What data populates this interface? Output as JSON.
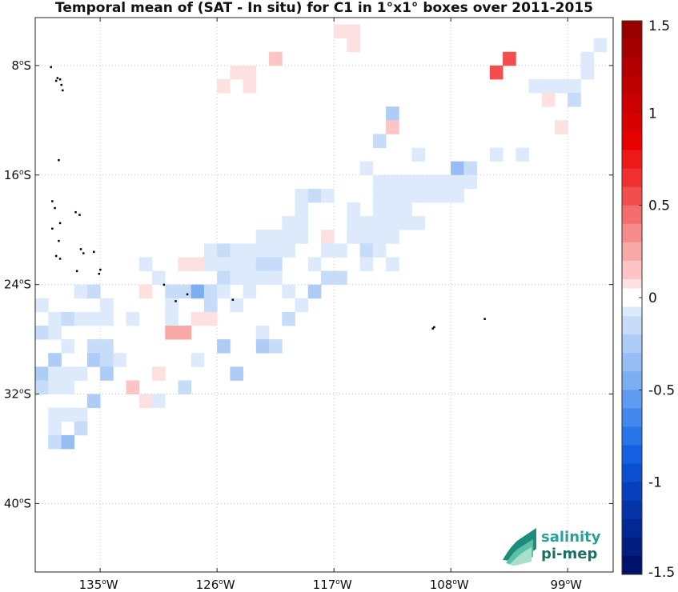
{
  "title": "Temporal mean of (SAT - In situ) for C1 in 1°x1° boxes over 2011-2015",
  "logo": {
    "line1": "salinity",
    "line2": "pi-mep",
    "color": "#2aa198"
  },
  "chart_data": {
    "type": "heatmap",
    "x_axis": {
      "range_lon": [
        -140,
        -95.5
      ],
      "ticks": [
        {
          "value": -135,
          "label": "135",
          "suffix": "W"
        },
        {
          "value": -126,
          "label": "126",
          "suffix": "W"
        },
        {
          "value": -117,
          "label": "117",
          "suffix": "W"
        },
        {
          "value": -108,
          "label": "108",
          "suffix": "W"
        },
        {
          "value": -99,
          "label": "99",
          "suffix": "W"
        }
      ]
    },
    "y_axis": {
      "range_lat": [
        -45,
        -4.5
      ],
      "ticks": [
        {
          "value": -8,
          "label": "8",
          "suffix": "S"
        },
        {
          "value": -16,
          "label": "16",
          "suffix": "S"
        },
        {
          "value": -24,
          "label": "24",
          "suffix": "S"
        },
        {
          "value": -32,
          "label": "32",
          "suffix": "S"
        },
        {
          "value": -40,
          "label": "40",
          "suffix": "S"
        }
      ]
    },
    "grid": true,
    "colorbar": {
      "min": -1.5,
      "max": 1.5,
      "step": 0.1,
      "tick_values": [
        1.5,
        1,
        0.5,
        0,
        -0.5,
        -1,
        -1.5
      ],
      "tick_labels": [
        "1.5",
        "1",
        "0.5",
        "0",
        "-0.5",
        "-1",
        "-1.5"
      ]
    },
    "cells": [
      {
        "lon": -116.5,
        "lat": -5.5,
        "v": 0.1
      },
      {
        "lon": -115.5,
        "lat": -5.5,
        "v": 0.1
      },
      {
        "lon": -115.5,
        "lat": -6.5,
        "v": 0.1
      },
      {
        "lon": -96.5,
        "lat": -6.5,
        "v": -0.1
      },
      {
        "lon": -121.5,
        "lat": -7.5,
        "v": 0.2
      },
      {
        "lon": -103.5,
        "lat": -7.5,
        "v": 0.6
      },
      {
        "lon": -97.5,
        "lat": -7.5,
        "v": -0.1
      },
      {
        "lon": -124.5,
        "lat": -8.5,
        "v": 0.1
      },
      {
        "lon": -123.5,
        "lat": -8.5,
        "v": 0.1
      },
      {
        "lon": -104.5,
        "lat": -8.5,
        "v": 0.6
      },
      {
        "lon": -97.5,
        "lat": -8.5,
        "v": -0.1
      },
      {
        "lon": -125.5,
        "lat": -9.5,
        "v": 0.1
      },
      {
        "lon": -123.5,
        "lat": -9.5,
        "v": 0.1
      },
      {
        "lon": -101.5,
        "lat": -9.5,
        "v": -0.1
      },
      {
        "lon": -100.5,
        "lat": -9.5,
        "v": -0.1
      },
      {
        "lon": -99.5,
        "lat": -9.5,
        "v": -0.1
      },
      {
        "lon": -98.5,
        "lat": -9.5,
        "v": -0.1
      },
      {
        "lon": -100.5,
        "lat": -10.5,
        "v": 0.1
      },
      {
        "lon": -98.5,
        "lat": -10.5,
        "v": -0.2
      },
      {
        "lon": -112.5,
        "lat": -11.5,
        "v": -0.3
      },
      {
        "lon": -112.5,
        "lat": -12.5,
        "v": 0.2
      },
      {
        "lon": -99.5,
        "lat": -12.5,
        "v": 0.1
      },
      {
        "lon": -113.5,
        "lat": -13.5,
        "v": -0.2
      },
      {
        "lon": -110.5,
        "lat": -14.5,
        "v": -0.1
      },
      {
        "lon": -104.5,
        "lat": -14.5,
        "v": -0.1
      },
      {
        "lon": -102.5,
        "lat": -14.5,
        "v": -0.1
      },
      {
        "lon": -114.5,
        "lat": -15.5,
        "v": -0.1
      },
      {
        "lon": -107.5,
        "lat": -15.5,
        "v": -0.4
      },
      {
        "lon": -106.5,
        "lat": -15.5,
        "v": -0.2
      },
      {
        "lon": -113.5,
        "lat": -16.5,
        "v": -0.1
      },
      {
        "lon": -112.5,
        "lat": -16.5,
        "v": -0.1
      },
      {
        "lon": -111.5,
        "lat": -16.5,
        "v": -0.1
      },
      {
        "lon": -110.5,
        "lat": -16.5,
        "v": -0.1
      },
      {
        "lon": -109.5,
        "lat": -16.5,
        "v": -0.1
      },
      {
        "lon": -108.5,
        "lat": -16.5,
        "v": -0.1
      },
      {
        "lon": -107.5,
        "lat": -16.5,
        "v": -0.1
      },
      {
        "lon": -106.5,
        "lat": -16.5,
        "v": -0.1
      },
      {
        "lon": -119.5,
        "lat": -17.5,
        "v": -0.1
      },
      {
        "lon": -118.5,
        "lat": -17.5,
        "v": -0.2
      },
      {
        "lon": -117.5,
        "lat": -17.5,
        "v": -0.1
      },
      {
        "lon": -113.5,
        "lat": -17.5,
        "v": -0.1
      },
      {
        "lon": -112.5,
        "lat": -17.5,
        "v": -0.1
      },
      {
        "lon": -111.5,
        "lat": -17.5,
        "v": -0.1
      },
      {
        "lon": -110.5,
        "lat": -17.5,
        "v": -0.1
      },
      {
        "lon": -109.5,
        "lat": -17.5,
        "v": -0.1
      },
      {
        "lon": -108.5,
        "lat": -17.5,
        "v": -0.1
      },
      {
        "lon": -107.5,
        "lat": -17.5,
        "v": -0.1
      },
      {
        "lon": -119.5,
        "lat": -18.5,
        "v": -0.1
      },
      {
        "lon": -115.5,
        "lat": -18.5,
        "v": -0.1
      },
      {
        "lon": -113.5,
        "lat": -18.5,
        "v": -0.1
      },
      {
        "lon": -112.5,
        "lat": -18.5,
        "v": -0.1
      },
      {
        "lon": -111.5,
        "lat": -18.5,
        "v": -0.1
      },
      {
        "lon": -120.5,
        "lat": -19.5,
        "v": -0.1
      },
      {
        "lon": -119.5,
        "lat": -19.5,
        "v": -0.1
      },
      {
        "lon": -115.5,
        "lat": -19.5,
        "v": -0.1
      },
      {
        "lon": -114.5,
        "lat": -19.5,
        "v": -0.1
      },
      {
        "lon": -113.5,
        "lat": -19.5,
        "v": -0.1
      },
      {
        "lon": -112.5,
        "lat": -19.5,
        "v": -0.1
      },
      {
        "lon": -111.5,
        "lat": -19.5,
        "v": -0.1
      },
      {
        "lon": -110.5,
        "lat": -19.5,
        "v": -0.1
      },
      {
        "lon": -122.5,
        "lat": -20.5,
        "v": -0.1
      },
      {
        "lon": -121.5,
        "lat": -20.5,
        "v": -0.1
      },
      {
        "lon": -120.5,
        "lat": -20.5,
        "v": -0.1
      },
      {
        "lon": -119.5,
        "lat": -20.5,
        "v": -0.1
      },
      {
        "lon": -117.5,
        "lat": -20.5,
        "v": 0.1
      },
      {
        "lon": -115.5,
        "lat": -20.5,
        "v": -0.1
      },
      {
        "lon": -114.5,
        "lat": -20.5,
        "v": -0.1
      },
      {
        "lon": -113.5,
        "lat": -20.5,
        "v": -0.1
      },
      {
        "lon": -112.5,
        "lat": -20.5,
        "v": -0.1
      },
      {
        "lon": -126.5,
        "lat": -21.5,
        "v": -0.1
      },
      {
        "lon": -125.5,
        "lat": -21.5,
        "v": -0.2
      },
      {
        "lon": -124.5,
        "lat": -21.5,
        "v": -0.1
      },
      {
        "lon": -123.5,
        "lat": -21.5,
        "v": -0.1
      },
      {
        "lon": -122.5,
        "lat": -21.5,
        "v": -0.1
      },
      {
        "lon": -121.5,
        "lat": -21.5,
        "v": -0.1
      },
      {
        "lon": -120.5,
        "lat": -21.5,
        "v": -0.1
      },
      {
        "lon": -117.5,
        "lat": -21.5,
        "v": -0.1
      },
      {
        "lon": -116.5,
        "lat": -21.5,
        "v": -0.1
      },
      {
        "lon": -114.5,
        "lat": -21.5,
        "v": -0.2
      },
      {
        "lon": -113.5,
        "lat": -21.5,
        "v": -0.1
      },
      {
        "lon": -131.5,
        "lat": -22.5,
        "v": -0.1
      },
      {
        "lon": -128.5,
        "lat": -22.5,
        "v": 0.1
      },
      {
        "lon": -127.5,
        "lat": -22.5,
        "v": 0.1
      },
      {
        "lon": -126.5,
        "lat": -22.5,
        "v": -0.1
      },
      {
        "lon": -125.5,
        "lat": -22.5,
        "v": -0.1
      },
      {
        "lon": -124.5,
        "lat": -22.5,
        "v": -0.1
      },
      {
        "lon": -123.5,
        "lat": -22.5,
        "v": -0.1
      },
      {
        "lon": -122.5,
        "lat": -22.5,
        "v": -0.2
      },
      {
        "lon": -121.5,
        "lat": -22.5,
        "v": -0.2
      },
      {
        "lon": -118.5,
        "lat": -22.5,
        "v": -0.1
      },
      {
        "lon": -114.5,
        "lat": -22.5,
        "v": -0.1
      },
      {
        "lon": -112.5,
        "lat": -22.5,
        "v": -0.1
      },
      {
        "lon": -130.5,
        "lat": -23.5,
        "v": -0.1
      },
      {
        "lon": -125.5,
        "lat": -23.5,
        "v": -0.2
      },
      {
        "lon": -124.5,
        "lat": -23.5,
        "v": -0.1
      },
      {
        "lon": -123.5,
        "lat": -23.5,
        "v": -0.1
      },
      {
        "lon": -122.5,
        "lat": -23.5,
        "v": -0.1
      },
      {
        "lon": -121.5,
        "lat": -23.5,
        "v": -0.1
      },
      {
        "lon": -117.5,
        "lat": -23.5,
        "v": -0.2
      },
      {
        "lon": -116.5,
        "lat": -23.5,
        "v": -0.2
      },
      {
        "lon": -136.5,
        "lat": -24.5,
        "v": -0.1
      },
      {
        "lon": -135.5,
        "lat": -24.5,
        "v": -0.2
      },
      {
        "lon": -131.5,
        "lat": -24.5,
        "v": 0.1
      },
      {
        "lon": -129.5,
        "lat": -24.5,
        "v": -0.2
      },
      {
        "lon": -128.5,
        "lat": -24.5,
        "v": -0.2
      },
      {
        "lon": -127.5,
        "lat": -24.5,
        "v": -0.5
      },
      {
        "lon": -126.5,
        "lat": -24.5,
        "v": -0.2
      },
      {
        "lon": -125.5,
        "lat": -24.5,
        "v": -0.1
      },
      {
        "lon": -123.5,
        "lat": -24.5,
        "v": -0.1
      },
      {
        "lon": -120.5,
        "lat": -24.5,
        "v": -0.1
      },
      {
        "lon": -118.5,
        "lat": -24.5,
        "v": -0.3
      },
      {
        "lon": -139.5,
        "lat": -25.5,
        "v": -0.1
      },
      {
        "lon": -134.5,
        "lat": -25.5,
        "v": -0.1
      },
      {
        "lon": -129.5,
        "lat": -25.5,
        "v": -0.1
      },
      {
        "lon": -126.5,
        "lat": -25.5,
        "v": -0.2
      },
      {
        "lon": -124.5,
        "lat": -25.5,
        "v": -0.1
      },
      {
        "lon": -119.5,
        "lat": -25.5,
        "v": -0.1
      },
      {
        "lon": -138.5,
        "lat": -26.5,
        "v": -0.1
      },
      {
        "lon": -137.5,
        "lat": -26.5,
        "v": -0.2
      },
      {
        "lon": -136.5,
        "lat": -26.5,
        "v": -0.1
      },
      {
        "lon": -135.5,
        "lat": -26.5,
        "v": -0.1
      },
      {
        "lon": -134.5,
        "lat": -26.5,
        "v": -0.1
      },
      {
        "lon": -132.5,
        "lat": -26.5,
        "v": -0.1
      },
      {
        "lon": -129.5,
        "lat": -26.5,
        "v": -0.1
      },
      {
        "lon": -127.5,
        "lat": -26.5,
        "v": 0.1
      },
      {
        "lon": -126.5,
        "lat": -26.5,
        "v": 0.1
      },
      {
        "lon": -120.5,
        "lat": -26.5,
        "v": -0.2
      },
      {
        "lon": -139.5,
        "lat": -27.5,
        "v": -0.2
      },
      {
        "lon": -138.5,
        "lat": -27.5,
        "v": -0.1
      },
      {
        "lon": -129.5,
        "lat": -27.5,
        "v": 0.3
      },
      {
        "lon": -128.5,
        "lat": -27.5,
        "v": 0.3
      },
      {
        "lon": -122.5,
        "lat": -27.5,
        "v": -0.1
      },
      {
        "lon": -137.5,
        "lat": -28.5,
        "v": -0.1
      },
      {
        "lon": -135.5,
        "lat": -28.5,
        "v": -0.2
      },
      {
        "lon": -134.5,
        "lat": -28.5,
        "v": -0.2
      },
      {
        "lon": -125.5,
        "lat": -28.5,
        "v": -0.3
      },
      {
        "lon": -122.5,
        "lat": -28.5,
        "v": -0.3
      },
      {
        "lon": -121.5,
        "lat": -28.5,
        "v": -0.2
      },
      {
        "lon": -138.5,
        "lat": -29.5,
        "v": -0.3
      },
      {
        "lon": -135.5,
        "lat": -29.5,
        "v": -0.3
      },
      {
        "lon": -134.5,
        "lat": -29.5,
        "v": -0.2
      },
      {
        "lon": -133.5,
        "lat": -29.5,
        "v": -0.1
      },
      {
        "lon": -127.5,
        "lat": -29.5,
        "v": -0.1
      },
      {
        "lon": -139.5,
        "lat": -30.5,
        "v": -0.3
      },
      {
        "lon": -138.5,
        "lat": -30.5,
        "v": -0.1
      },
      {
        "lon": -137.5,
        "lat": -30.5,
        "v": -0.1
      },
      {
        "lon": -136.5,
        "lat": -30.5,
        "v": -0.1
      },
      {
        "lon": -134.5,
        "lat": -30.5,
        "v": -0.3
      },
      {
        "lon": -130.5,
        "lat": -30.5,
        "v": 0.1
      },
      {
        "lon": -124.5,
        "lat": -30.5,
        "v": -0.3
      },
      {
        "lon": -139.5,
        "lat": -31.5,
        "v": -0.2
      },
      {
        "lon": -138.5,
        "lat": -31.5,
        "v": -0.1
      },
      {
        "lon": -137.5,
        "lat": -31.5,
        "v": -0.1
      },
      {
        "lon": -132.5,
        "lat": -31.5,
        "v": 0.2
      },
      {
        "lon": -128.5,
        "lat": -31.5,
        "v": -0.2
      },
      {
        "lon": -135.5,
        "lat": -32.5,
        "v": -0.3
      },
      {
        "lon": -131.5,
        "lat": -32.5,
        "v": 0.1
      },
      {
        "lon": -130.5,
        "lat": -32.5,
        "v": -0.1
      },
      {
        "lon": -138.5,
        "lat": -33.5,
        "v": -0.1
      },
      {
        "lon": -137.5,
        "lat": -33.5,
        "v": -0.1
      },
      {
        "lon": -136.5,
        "lat": -33.5,
        "v": -0.1
      },
      {
        "lon": -138.5,
        "lat": -34.5,
        "v": -0.1
      },
      {
        "lon": -136.5,
        "lat": -34.5,
        "v": -0.2
      },
      {
        "lon": -138.5,
        "lat": -35.5,
        "v": -0.2
      },
      {
        "lon": -137.5,
        "lat": -35.5,
        "v": -0.4
      }
    ],
    "land": [
      {
        "lon": -138.8,
        "lat": -8.1
      },
      {
        "lon": -138.3,
        "lat": -8.9
      },
      {
        "lon": -138.1,
        "lat": -9.0
      },
      {
        "lon": -138.0,
        "lat": -9.4
      },
      {
        "lon": -137.9,
        "lat": -9.8
      },
      {
        "lon": -138.4,
        "lat": -9.1
      },
      {
        "lon": -138.2,
        "lat": -14.9
      },
      {
        "lon": -138.7,
        "lat": -17.9
      },
      {
        "lon": -138.5,
        "lat": -18.4
      },
      {
        "lon": -136.9,
        "lat": -18.7
      },
      {
        "lon": -136.6,
        "lat": -18.9
      },
      {
        "lon": -138.1,
        "lat": -19.5
      },
      {
        "lon": -138.7,
        "lat": -19.9
      },
      {
        "lon": -138.2,
        "lat": -20.8
      },
      {
        "lon": -136.5,
        "lat": -21.4
      },
      {
        "lon": -136.3,
        "lat": -21.7
      },
      {
        "lon": -135.5,
        "lat": -21.6
      },
      {
        "lon": -138.4,
        "lat": -21.9
      },
      {
        "lon": -138.1,
        "lat": -22.1
      },
      {
        "lon": -136.8,
        "lat": -23.0
      },
      {
        "lon": -135.1,
        "lat": -23.2
      },
      {
        "lon": -135.0,
        "lat": -22.9
      },
      {
        "lon": -130.1,
        "lat": -24.0
      },
      {
        "lon": -128.3,
        "lat": -24.7
      },
      {
        "lon": -124.8,
        "lat": -25.1
      },
      {
        "lon": -129.2,
        "lat": -25.2
      },
      {
        "lon": -109.3,
        "lat": -27.1
      },
      {
        "lon": -109.4,
        "lat": -27.2
      },
      {
        "lon": -105.4,
        "lat": -26.5
      }
    ],
    "colors": {
      "grid": "#c8c8c8",
      "positive_ramp": [
        "#fde0e0",
        "#fcc4c4",
        "#f9a8a8",
        "#f78c8c",
        "#f46d6d",
        "#f24e4e",
        "#f03030",
        "#ee1818",
        "#e60000",
        "#d80000",
        "#cc0000",
        "#bf0000",
        "#b20000",
        "#a50000",
        "#980000"
      ],
      "negative_ramp": [
        "#ddeafb",
        "#c6dcf8",
        "#aecdf6",
        "#96bef4",
        "#7caef2",
        "#5f9bf0",
        "#4388ee",
        "#2a74ea",
        "#1460e2",
        "#0a4fd0",
        "#0640bd",
        "#0434a8",
        "#022893",
        "#011e80",
        "#00116c"
      ]
    }
  }
}
